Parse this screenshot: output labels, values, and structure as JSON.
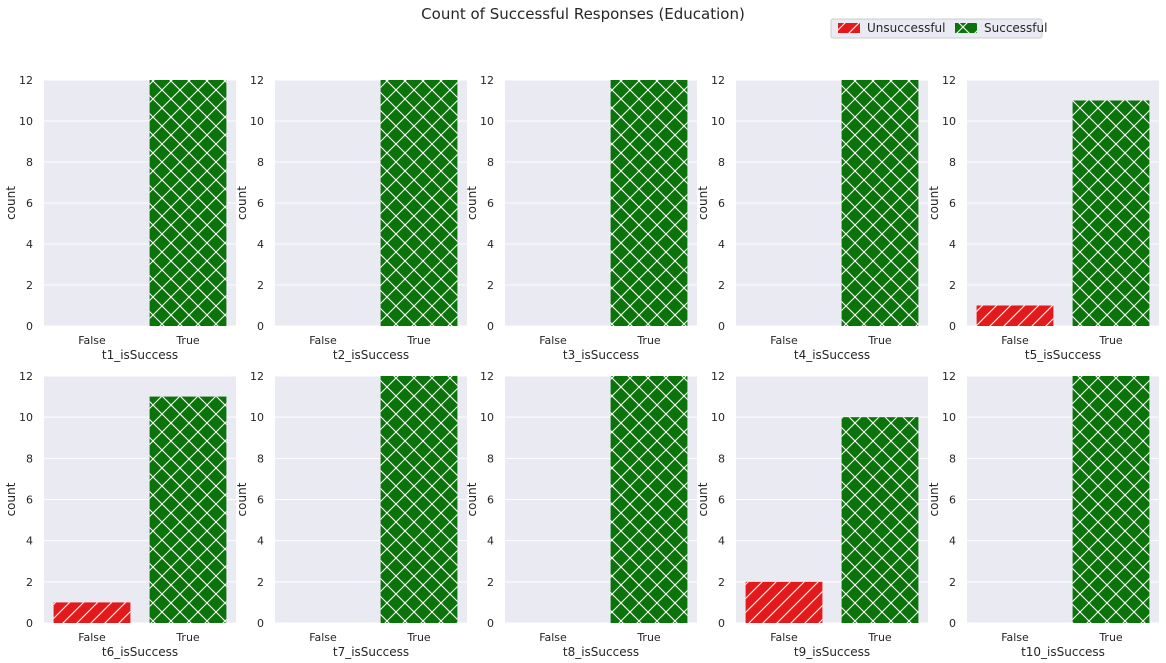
{
  "figure": {
    "title": "Count of Successful Responses (Education)",
    "legend": {
      "placement": "top-right",
      "entries": [
        {
          "name": "Unsuccessful",
          "color": "#e31a1c",
          "hatch": "diagonal"
        },
        {
          "name": "Successful",
          "color": "#0a730a",
          "hatch": "cross"
        }
      ]
    },
    "background_color": "#eaeaf2",
    "grid": true
  },
  "chart_data": [
    {
      "type": "bar",
      "categories": [
        "False",
        "True"
      ],
      "values": [
        0,
        12
      ],
      "xlabel": "t1_isSuccess",
      "ylabel": "count",
      "ylim": [
        0,
        12
      ],
      "yticks": [
        "0",
        "2",
        "4",
        "6",
        "8",
        "10",
        "12"
      ]
    },
    {
      "type": "bar",
      "categories": [
        "False",
        "True"
      ],
      "values": [
        0,
        12
      ],
      "xlabel": "t2_isSuccess",
      "ylabel": "count",
      "ylim": [
        0,
        12
      ],
      "yticks": [
        "0",
        "2",
        "4",
        "6",
        "8",
        "10",
        "12"
      ]
    },
    {
      "type": "bar",
      "categories": [
        "False",
        "True"
      ],
      "values": [
        0,
        12
      ],
      "xlabel": "t3_isSuccess",
      "ylabel": "count",
      "ylim": [
        0,
        12
      ],
      "yticks": [
        "0",
        "2",
        "4",
        "6",
        "8",
        "10",
        "12"
      ]
    },
    {
      "type": "bar",
      "categories": [
        "False",
        "True"
      ],
      "values": [
        0,
        12
      ],
      "xlabel": "t4_isSuccess",
      "ylabel": "count",
      "ylim": [
        0,
        12
      ],
      "yticks": [
        "0",
        "2",
        "4",
        "6",
        "8",
        "10",
        "12"
      ]
    },
    {
      "type": "bar",
      "categories": [
        "False",
        "True"
      ],
      "values": [
        1,
        11
      ],
      "xlabel": "t5_isSuccess",
      "ylabel": "count",
      "ylim": [
        0,
        12
      ],
      "yticks": [
        "0",
        "2",
        "4",
        "6",
        "8",
        "10",
        "12"
      ]
    },
    {
      "type": "bar",
      "categories": [
        "False",
        "True"
      ],
      "values": [
        1,
        11
      ],
      "xlabel": "t6_isSuccess",
      "ylabel": "count",
      "ylim": [
        0,
        12
      ],
      "yticks": [
        "0",
        "2",
        "4",
        "6",
        "8",
        "10",
        "12"
      ]
    },
    {
      "type": "bar",
      "categories": [
        "False",
        "True"
      ],
      "values": [
        0,
        12
      ],
      "xlabel": "t7_isSuccess",
      "ylabel": "count",
      "ylim": [
        0,
        12
      ],
      "yticks": [
        "0",
        "2",
        "4",
        "6",
        "8",
        "10",
        "12"
      ]
    },
    {
      "type": "bar",
      "categories": [
        "False",
        "True"
      ],
      "values": [
        0,
        12
      ],
      "xlabel": "t8_isSuccess",
      "ylabel": "count",
      "ylim": [
        0,
        12
      ],
      "yticks": [
        "0",
        "2",
        "4",
        "6",
        "8",
        "10",
        "12"
      ]
    },
    {
      "type": "bar",
      "categories": [
        "False",
        "True"
      ],
      "values": [
        2,
        10
      ],
      "xlabel": "t9_isSuccess",
      "ylabel": "count",
      "ylim": [
        0,
        12
      ],
      "yticks": [
        "0",
        "2",
        "4",
        "6",
        "8",
        "10",
        "12"
      ]
    },
    {
      "type": "bar",
      "categories": [
        "False",
        "True"
      ],
      "values": [
        0,
        12
      ],
      "xlabel": "t10_isSuccess",
      "ylabel": "count",
      "ylim": [
        0,
        12
      ],
      "yticks": [
        "0",
        "2",
        "4",
        "6",
        "8",
        "10",
        "12"
      ]
    }
  ]
}
